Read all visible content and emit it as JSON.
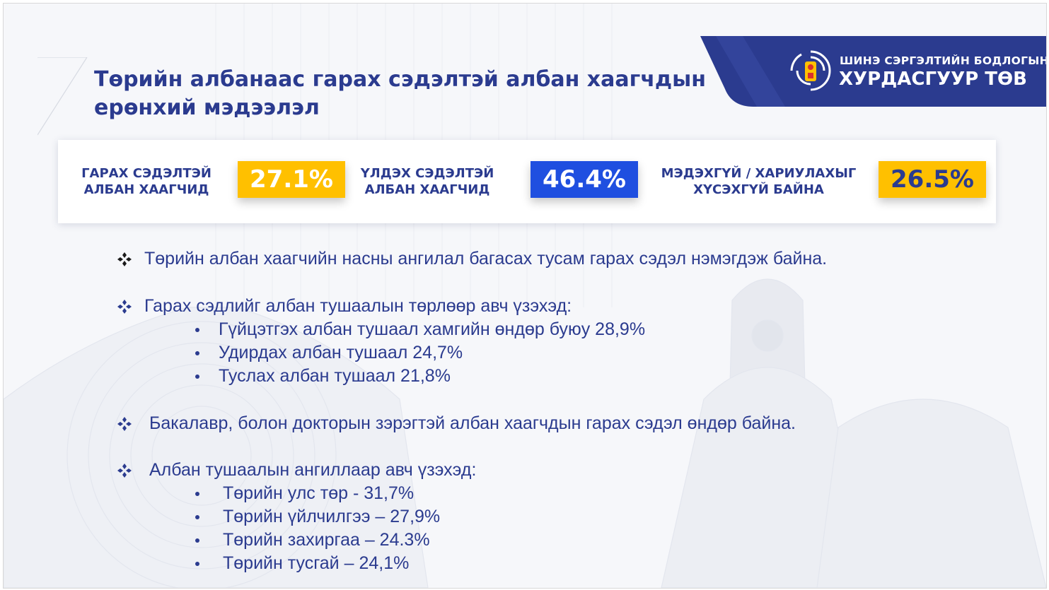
{
  "title": "Төрийн албанаас гарах сэдэлтэй албан хаагчдын ерөнхий мэдээлэл",
  "logo": {
    "line1": "ШИНЭ СЭРГЭЛТИЙН БОДЛОГЫН",
    "line2": "ХУРДАСГУУР ТӨВ",
    "emblem_icon": "soyombo-emblem-icon"
  },
  "stats": [
    {
      "label": "ГАРАХ СЭДЭЛТЭЙ\nАЛБАН ХААГЧИД",
      "value": "27.1%",
      "color": "#ffc000"
    },
    {
      "label": "ҮЛДЭХ СЭДЭЛТЭЙ\nАЛБАН ХААГЧИД",
      "value": "46.4%",
      "color": "#1f4fe0"
    },
    {
      "label": "МЭДЭХГҮЙ / ХАРИУЛАХЫГ\nХҮСЭХГҮЙ БАЙНА",
      "value": "26.5%",
      "color": "#ffc000"
    }
  ],
  "bullets": [
    {
      "text": "Төрийн албан хаагчийн насны ангилал багасах тусам гарах сэдэл нэмэгдэж байна.",
      "subs": []
    },
    {
      "text": "Гарах сэдлийг албан тушаалын төрлөөр авч үзэхэд:",
      "subs": [
        "Гүйцэтгэх албан тушаал хамгийн өндөр буюу 28,9%",
        "Удирдах албан тушаал  24,7%",
        "Туслах албан тушаал 21,8%"
      ]
    },
    {
      "text": "Бакалавр, болон докторын зэрэгтэй албан хаагчдын гарах сэдэл өндөр байна.",
      "subs": []
    },
    {
      "text": "Албан тушаалын ангиллаар авч үзэхэд:",
      "subs": [
        "Төрийн улс төр - 31,7%",
        "Төрийн үйлчилгээ – 27,9%",
        "Төрийн захиргаа – 24.3%",
        "Төрийн тусгай – 24,1%"
      ]
    }
  ],
  "colors": {
    "primary": "#2b3b8f",
    "accent_yellow": "#ffc000",
    "accent_blue": "#1f4fe0"
  }
}
